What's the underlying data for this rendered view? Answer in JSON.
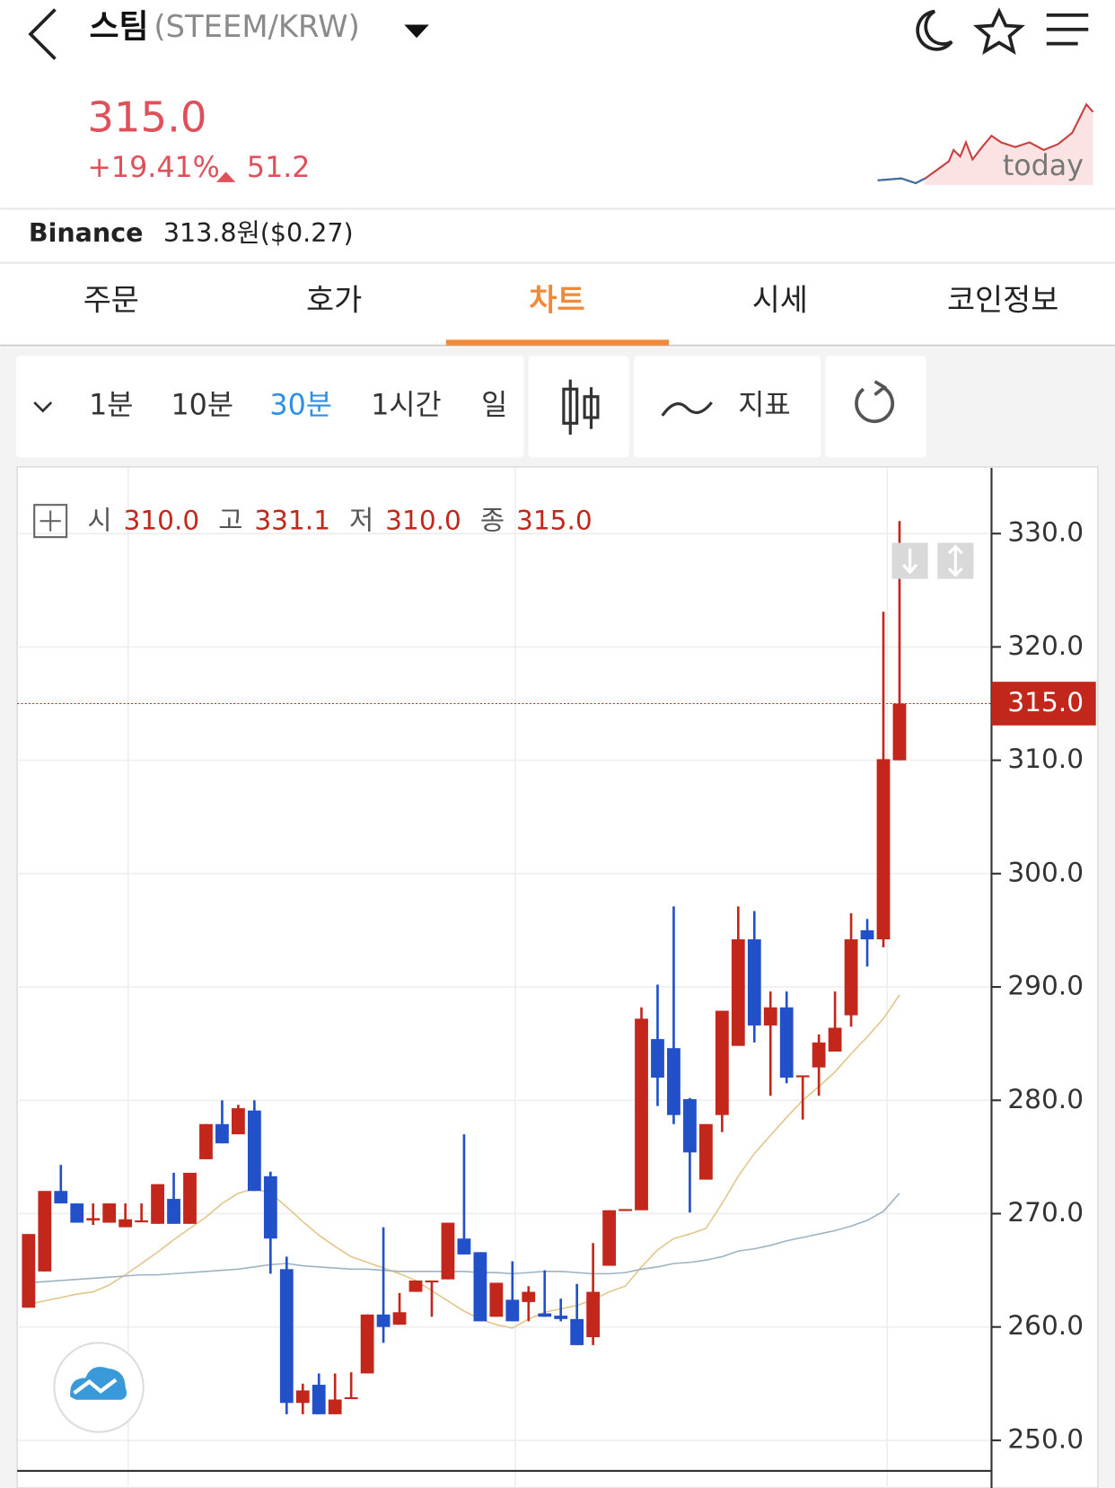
{
  "header": {
    "title": "스팀",
    "pair": "(STEEM/KRW)"
  },
  "price": {
    "current": "315.0",
    "change_pct": "+19.41%",
    "change": "51.2",
    "sparkline_label": "today"
  },
  "exchange": {
    "name": "Binance",
    "price": "313.8원($0.27)"
  },
  "tabs": [
    "주문",
    "호가",
    "차트",
    "시세",
    "코인정보"
  ],
  "intervals": [
    "1분",
    "10분",
    "30분",
    "1시간",
    "일"
  ],
  "indicator_button": "지표",
  "chart_data": {
    "type": "candlestick",
    "open": [
      261.7,
      264.9,
      272.0,
      270.9,
      269.4,
      269.2,
      268.8,
      269.3,
      269.1,
      271.3,
      269.1,
      274.8,
      277.9,
      277.0,
      279.1,
      273.3,
      265.1,
      253.3,
      254.9,
      252.3,
      253.7,
      255.9,
      261.1,
      260.2,
      263.1,
      264.0,
      264.2,
      267.8,
      266.6,
      260.9,
      262.4,
      262.2,
      261.2,
      261.0,
      260.7,
      259.1,
      265.4,
      270.3,
      270.3,
      285.4,
      284.6,
      280.1,
      273.0,
      278.7,
      284.8,
      294.2,
      286.6,
      288.2,
      282.1,
      282.9,
      284.3,
      287.5,
      295.0,
      294.2,
      310.0
    ],
    "high": [
      268.2,
      272.0,
      274.3,
      270.9,
      270.9,
      270.9,
      270.9,
      270.9,
      272.6,
      273.6,
      273.6,
      277.9,
      280.0,
      279.6,
      280.0,
      273.7,
      266.2,
      255.0,
      255.9,
      255.9,
      256.0,
      261.1,
      268.8,
      263.0,
      264.1,
      264.1,
      269.2,
      277.0,
      266.6,
      263.9,
      265.8,
      263.6,
      265.0,
      262.5,
      263.8,
      267.4,
      270.3,
      270.4,
      288.2,
      290.2,
      297.1,
      280.2,
      277.9,
      287.9,
      297.1,
      296.7,
      289.6,
      289.6,
      282.2,
      285.8,
      289.6,
      296.5,
      296.0,
      323.1,
      331.1
    ],
    "low": [
      261.7,
      264.9,
      270.9,
      269.2,
      269.0,
      269.2,
      268.8,
      269.3,
      269.1,
      269.1,
      269.1,
      274.8,
      276.2,
      277.0,
      272.0,
      264.7,
      252.3,
      252.3,
      252.3,
      252.3,
      253.7,
      255.9,
      258.6,
      260.2,
      263.1,
      260.9,
      264.2,
      266.4,
      260.5,
      260.9,
      260.5,
      260.5,
      260.9,
      260.5,
      258.4,
      258.4,
      265.4,
      270.3,
      270.3,
      279.5,
      277.9,
      270.1,
      273.0,
      277.2,
      284.8,
      285.1,
      280.4,
      281.5,
      278.3,
      280.4,
      284.3,
      286.5,
      291.8,
      293.5,
      310.0
    ],
    "close": [
      268.2,
      272.0,
      270.9,
      269.2,
      269.6,
      270.9,
      269.5,
      269.4,
      272.6,
      269.1,
      273.6,
      277.9,
      276.2,
      279.3,
      272.0,
      267.8,
      253.3,
      254.4,
      252.3,
      253.6,
      253.8,
      261.1,
      260.0,
      261.3,
      264.1,
      264.1,
      269.2,
      266.4,
      260.5,
      263.9,
      260.5,
      263.1,
      260.9,
      260.7,
      258.4,
      263.1,
      270.3,
      270.4,
      287.2,
      282.0,
      278.7,
      275.4,
      277.9,
      287.9,
      294.2,
      286.6,
      288.2,
      282.0,
      282.2,
      285.1,
      286.4,
      294.2,
      294.2,
      310.1,
      315.0
    ],
    "up_color": "#c3271c",
    "down_color": "#2250c8",
    "ma_lines": [
      {
        "color": "#e3c58a",
        "values": [
          262.0,
          262.3,
          262.6,
          262.9,
          263.1,
          263.7,
          264.6,
          265.6,
          266.6,
          267.7,
          268.7,
          269.7,
          270.9,
          271.8,
          272.2,
          271.8,
          270.6,
          269.3,
          268.1,
          267.1,
          266.2,
          265.7,
          265.2,
          264.7,
          264.1,
          263.2,
          262.3,
          261.4,
          260.7,
          260.2,
          259.9,
          260.7,
          261.3,
          261.6,
          261.9,
          262.4,
          263.1,
          263.6,
          265.3,
          266.8,
          267.8,
          268.2,
          268.7,
          270.9,
          273.3,
          275.3,
          276.9,
          278.5,
          280.0,
          281.2,
          282.5,
          284.1,
          285.6,
          287.2,
          289.3
        ]
      },
      {
        "color": "#9db3c2",
        "values": [
          263.9,
          264.0,
          264.1,
          264.2,
          264.3,
          264.4,
          264.5,
          264.6,
          264.6,
          264.7,
          264.8,
          264.9,
          265.0,
          265.1,
          265.3,
          265.5,
          265.6,
          265.4,
          265.3,
          265.2,
          265.1,
          265.1,
          265.0,
          264.9,
          264.9,
          264.9,
          264.9,
          264.9,
          264.8,
          264.8,
          264.7,
          264.8,
          264.9,
          264.9,
          264.8,
          264.7,
          264.7,
          264.8,
          265.1,
          265.3,
          265.6,
          265.7,
          265.9,
          266.2,
          266.7,
          266.9,
          267.2,
          267.6,
          267.9,
          268.2,
          268.5,
          268.9,
          269.4,
          270.2,
          271.8
        ]
      }
    ],
    "ylim": [
      247.3,
      335.8
    ],
    "yticks": [
      {
        "value": 250,
        "label": "250.0"
      },
      {
        "value": 260,
        "label": "260.0"
      },
      {
        "value": 270,
        "label": "270.0"
      },
      {
        "value": 280,
        "label": "280.0"
      },
      {
        "value": 290,
        "label": "290.0"
      },
      {
        "value": 300,
        "label": "300.0"
      },
      {
        "value": 310,
        "label": "310.0"
      },
      {
        "value": 320,
        "label": "320.0"
      },
      {
        "value": 330,
        "label": "330.0"
      }
    ],
    "grid": true,
    "current_price": {
      "value": 315,
      "label": "315.0"
    },
    "ohlc_legend": [
      {
        "label": "시",
        "value": "310.0"
      },
      {
        "label": "고",
        "value": "331.1"
      },
      {
        "label": "저",
        "value": "310.0"
      },
      {
        "label": "종",
        "value": "315.0"
      }
    ]
  }
}
